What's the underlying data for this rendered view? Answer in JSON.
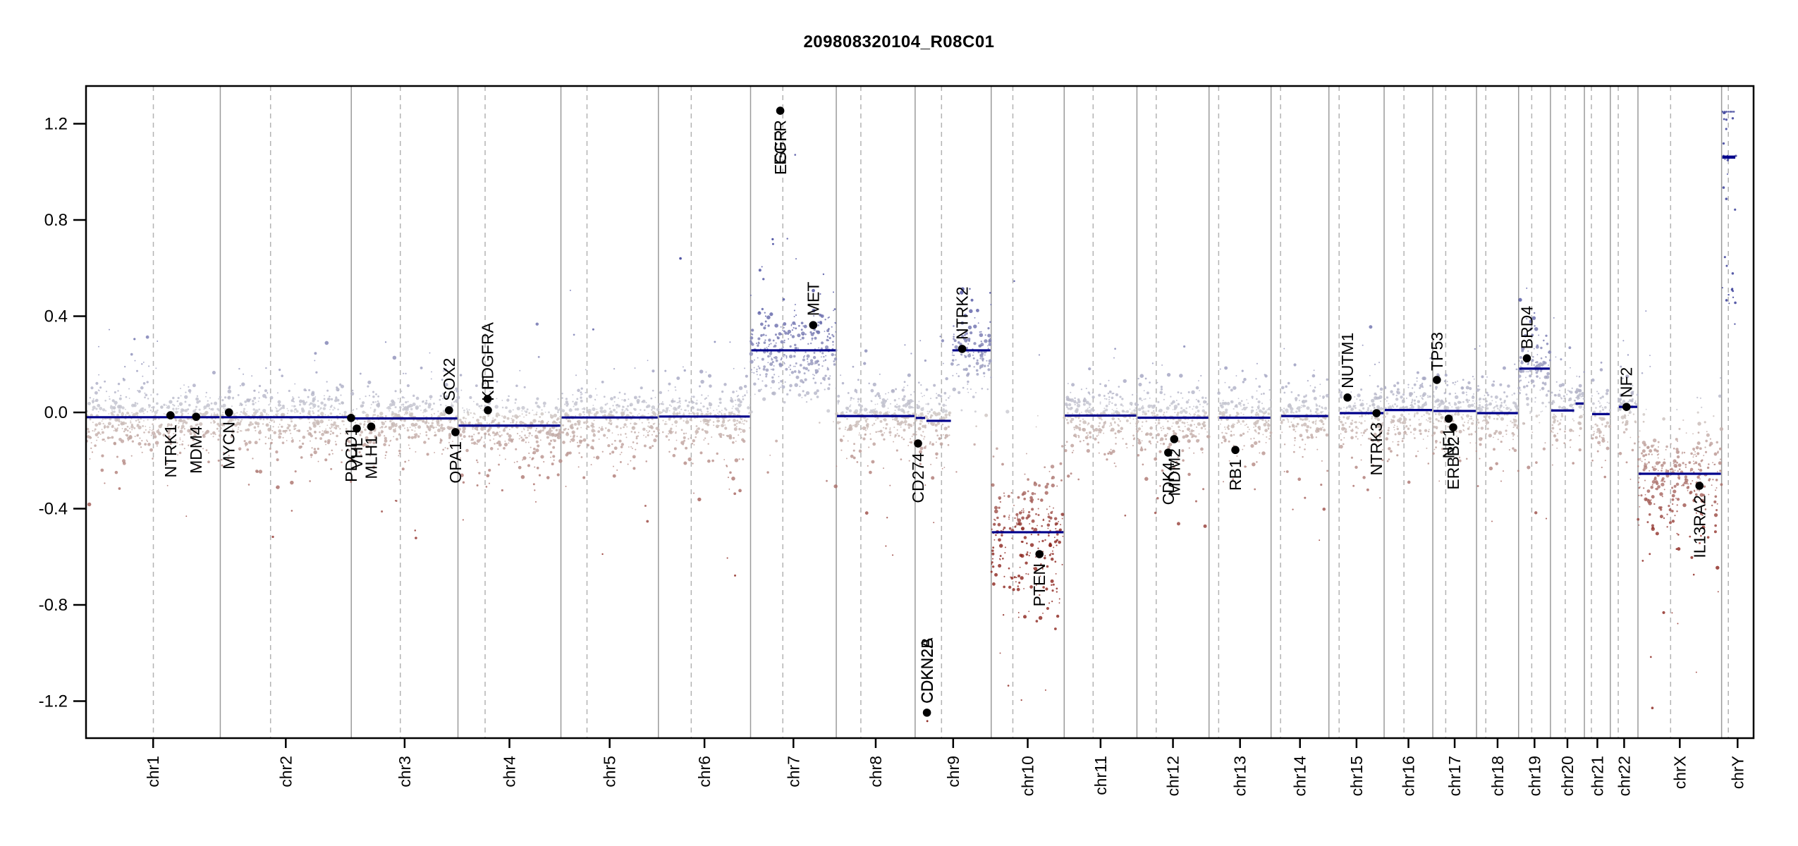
{
  "title": "209808320104_R08C01",
  "chart_data": {
    "type": "scatter",
    "title": "209808320104_R08C01",
    "xlabel": "",
    "ylabel": "",
    "legend": "none",
    "grid": "off",
    "ylim": [
      -1.354,
      1.357
    ],
    "point_clip": 1.25,
    "y_ticks": [
      1.2,
      0.8,
      0.4,
      0.0,
      -0.4,
      -0.8,
      -1.2
    ],
    "y_tick_labels": [
      "1.2",
      "0.8",
      "0.4",
      "0.0",
      "-0.4",
      "-0.8",
      "-1.2"
    ],
    "colors": {
      "segment": "#00008B",
      "gain_point": "#464E9E",
      "loss_point": "#8B2520",
      "neutral_point": "#C8C6CA",
      "boundary_line": "#9A9A9A",
      "centromere_line": "#B3B3B3",
      "gene_marker": "#000000",
      "axis": "#000000"
    },
    "chromosomes": [
      {
        "name": "chr1",
        "mb": 249.25,
        "cen_mb": 125.0,
        "segments": [
          [
            0,
            1,
            -0.02,
            1
          ]
        ]
      },
      {
        "name": "chr2",
        "mb": 243.2,
        "cen_mb": 93.3,
        "segments": [
          [
            0,
            1,
            -0.02,
            1
          ]
        ]
      },
      {
        "name": "chr3",
        "mb": 198.02,
        "cen_mb": 91.0,
        "segments": [
          [
            0,
            1,
            -0.025,
            1
          ]
        ]
      },
      {
        "name": "chr4",
        "mb": 191.15,
        "cen_mb": 50.4,
        "segments": [
          [
            0,
            1,
            -0.055,
            1
          ]
        ]
      },
      {
        "name": "chr5",
        "mb": 180.92,
        "cen_mb": 48.4,
        "segments": [
          [
            0,
            1,
            -0.021,
            1
          ]
        ]
      },
      {
        "name": "chr6",
        "mb": 171.12,
        "cen_mb": 61.0,
        "segments": [
          [
            0,
            1,
            -0.017,
            1
          ]
        ]
      },
      {
        "name": "chr7",
        "mb": 159.14,
        "cen_mb": 59.9,
        "segments": [
          [
            0,
            1,
            0.258,
            1.5
          ]
        ],
        "density": 1.1
      },
      {
        "name": "chr8",
        "mb": 146.36,
        "cen_mb": 45.6,
        "segments": [
          [
            0,
            1,
            -0.015,
            1
          ]
        ]
      },
      {
        "name": "chr9",
        "mb": 141.21,
        "cen_mb": 49.0,
        "segments": [
          [
            0,
            0.14,
            -0.023,
            1
          ],
          [
            0.14,
            0.48,
            -0.035,
            1
          ],
          [
            0.48,
            1,
            0.258,
            1.5
          ]
        ]
      },
      {
        "name": "chr10",
        "mb": 135.53,
        "cen_mb": 40.2,
        "segments": [
          [
            0,
            1,
            -0.498,
            2.2
          ]
        ]
      },
      {
        "name": "chr11",
        "mb": 135.01,
        "cen_mb": 53.7,
        "segments": [
          [
            0,
            1,
            -0.013,
            1
          ]
        ]
      },
      {
        "name": "chr12",
        "mb": 133.85,
        "cen_mb": 35.8,
        "segments": [
          [
            0,
            1,
            -0.022,
            1
          ]
        ]
      },
      {
        "name": "chr13",
        "mb": 115.17,
        "cen_mb": 17.9,
        "probe_start": 0.155,
        "segments": [
          [
            0.155,
            1,
            -0.022,
            1
          ]
        ]
      },
      {
        "name": "chr14",
        "mb": 107.35,
        "cen_mb": 17.6,
        "probe_start": 0.164,
        "segments": [
          [
            0.164,
            1,
            -0.015,
            1
          ]
        ]
      },
      {
        "name": "chr15",
        "mb": 102.53,
        "cen_mb": 19.0,
        "probe_start": 0.185,
        "segments": [
          [
            0.185,
            1,
            -0.003,
            1
          ]
        ]
      },
      {
        "name": "chr16",
        "mb": 90.35,
        "cen_mb": 36.8,
        "segments": [
          [
            0,
            1,
            0.01,
            1
          ]
        ]
      },
      {
        "name": "chr17",
        "mb": 81.2,
        "cen_mb": 24.0,
        "segments": [
          [
            0,
            1,
            0.006,
            1
          ]
        ]
      },
      {
        "name": "chr18",
        "mb": 78.08,
        "cen_mb": 17.2,
        "segments": [
          [
            0,
            1,
            -0.003,
            1
          ]
        ]
      },
      {
        "name": "chr19",
        "mb": 59.13,
        "cen_mb": 24.4,
        "segments": [
          [
            0,
            1,
            0.182,
            1.5
          ]
        ],
        "density": 1.15
      },
      {
        "name": "chr20",
        "mb": 63.03,
        "cen_mb": 27.5,
        "segments": [
          [
            0,
            0.72,
            0.008,
            1
          ],
          [
            0.72,
            1,
            0.037,
            1
          ]
        ]
      },
      {
        "name": "chr21",
        "mb": 48.13,
        "cen_mb": 13.0,
        "probe_start": 0.27,
        "segments": [
          [
            0.27,
            1,
            -0.007,
            1
          ]
        ]
      },
      {
        "name": "chr22",
        "mb": 51.3,
        "cen_mb": 14.7,
        "probe_start": 0.287,
        "segments": [
          [
            0.287,
            1,
            0.023,
            1
          ]
        ]
      },
      {
        "name": "chrX",
        "mb": 155.27,
        "cen_mb": 60.6,
        "segments": [
          [
            0,
            1,
            -0.255,
            1.7
          ]
        ],
        "density": 1.05
      },
      {
        "name": "chrY",
        "mb": 59.37,
        "cen_mb": 12.5,
        "sparse": true,
        "segments": [
          [
            0,
            0.45,
            1.061,
            1
          ]
        ]
      }
    ],
    "genes": [
      {
        "name": "NTRK1",
        "chr": "chr1",
        "mb": 156.8,
        "value": -0.012,
        "side": "below"
      },
      {
        "name": "MDM4",
        "chr": "chr1",
        "mb": 204.5,
        "value": -0.018,
        "side": "below"
      },
      {
        "name": "MYCN",
        "chr": "chr2",
        "mb": 16.1,
        "value": 0.0,
        "side": "below"
      },
      {
        "name": "PDCD1",
        "chr": "chr2",
        "mb": 242.8,
        "value": -0.023,
        "side": "below"
      },
      {
        "name": "VHL",
        "chr": "chr3",
        "mb": 10.2,
        "value": -0.067,
        "side": "below"
      },
      {
        "name": "MLH1",
        "chr": "chr3",
        "mb": 37.0,
        "value": -0.059,
        "side": "below"
      },
      {
        "name": "SOX2",
        "chr": "chr3",
        "mb": 181.4,
        "value": 0.009,
        "side": "above"
      },
      {
        "name": "OPA1",
        "chr": "chr3",
        "mb": 193.3,
        "value": -0.082,
        "side": "below"
      },
      {
        "name": "PDGFRA",
        "chr": "chr4",
        "mb": 55.1,
        "value": 0.056,
        "side": "above"
      },
      {
        "name": "KIT",
        "chr": "chr4",
        "mb": 55.6,
        "value": 0.009,
        "side": "above"
      },
      {
        "name": "EGFR",
        "chr": "chr7",
        "mb": 55.1,
        "value": 1.254,
        "side": "below"
      },
      {
        "name": "EGFR",
        "chr": "chr7",
        "mb": 55.8,
        "value": 1.254,
        "side": "below",
        "no_dot": true,
        "dy": 14
      },
      {
        "name": "MET",
        "chr": "chr7",
        "mb": 116.3,
        "value": 0.363,
        "side": "above"
      },
      {
        "name": "CD274",
        "chr": "chr9",
        "mb": 5.4,
        "value": -0.129,
        "side": "below"
      },
      {
        "name": "CDKN2A",
        "chr": "chr9",
        "mb": 21.9,
        "value": -1.248,
        "side": "above"
      },
      {
        "name": "CDKN2B",
        "chr": "chr9",
        "mb": 22.4,
        "value": -1.248,
        "side": "above",
        "no_dot": true
      },
      {
        "name": "NTRK2",
        "chr": "chr9",
        "mb": 87.3,
        "value": 0.264,
        "side": "above"
      },
      {
        "name": "PTEN",
        "chr": "chr10",
        "mb": 89.6,
        "value": -0.589,
        "side": "below"
      },
      {
        "name": "CDK4",
        "chr": "chr12",
        "mb": 58.1,
        "value": -0.167,
        "side": "below"
      },
      {
        "name": "MDM2",
        "chr": "chr12",
        "mb": 69.2,
        "value": -0.111,
        "side": "below"
      },
      {
        "name": "RB1",
        "chr": "chr13",
        "mb": 48.9,
        "value": -0.156,
        "side": "below"
      },
      {
        "name": "NUTM1",
        "chr": "chr15",
        "mb": 34.6,
        "value": 0.062,
        "side": "above"
      },
      {
        "name": "NTRK3",
        "chr": "chr15",
        "mb": 88.4,
        "value": -0.003,
        "side": "below"
      },
      {
        "name": "TP53",
        "chr": "chr17",
        "mb": 7.6,
        "value": 0.135,
        "side": "above"
      },
      {
        "name": "NF1",
        "chr": "chr17",
        "mb": 29.5,
        "value": -0.026,
        "side": "below"
      },
      {
        "name": "ERBB2",
        "chr": "chr17",
        "mb": 37.9,
        "value": -0.062,
        "side": "below"
      },
      {
        "name": "BRD4",
        "chr": "chr19",
        "mb": 15.4,
        "value": 0.225,
        "side": "above"
      },
      {
        "name": "NF2",
        "chr": "chr22",
        "mb": 30.0,
        "value": 0.023,
        "side": "above"
      },
      {
        "name": "IL13RA2",
        "chr": "chrX",
        "mb": 114.2,
        "value": -0.305,
        "side": "below"
      }
    ],
    "outlier_points": [
      {
        "chr": "chr6",
        "mb": 41.0,
        "value": 0.64,
        "r": 1.8
      },
      {
        "chr": "chr7",
        "mb": 41.0,
        "value": 0.72,
        "r": 1.6
      },
      {
        "chr": "chr7",
        "mb": 41.8,
        "value": 0.7,
        "r": 1.4
      },
      {
        "chr": "chr9",
        "mb": 22.6,
        "value": -1.283,
        "r": 1.4
      },
      {
        "chr": "chr5",
        "mb": 60.0,
        "value": 0.345,
        "r": 1.5
      },
      {
        "chr": "chr1",
        "mb": 90.0,
        "value": 0.305,
        "r": 1.6
      }
    ]
  }
}
